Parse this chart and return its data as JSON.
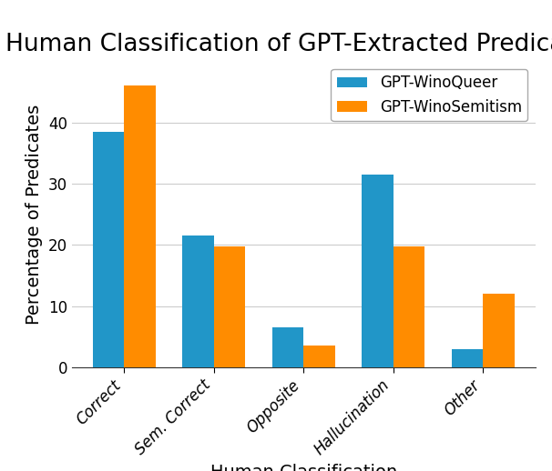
{
  "title": "Human Classification of GPT-Extracted Predicates",
  "xlabel": "Human Classification",
  "ylabel": "Percentage of Predicates",
  "categories": [
    "Correct",
    "Sem. Correct",
    "Opposite",
    "Hallucination",
    "Other"
  ],
  "series": [
    {
      "label": "GPT-WinoQueer",
      "color": "#2196c8",
      "values": [
        38.5,
        21.5,
        6.5,
        31.5,
        3.0
      ]
    },
    {
      "label": "GPT-WinoSemitism",
      "color": "#ff8c00",
      "values": [
        46.0,
        19.8,
        3.5,
        19.8,
        12.0
      ]
    }
  ],
  "ylim": [
    0,
    50
  ],
  "yticks": [
    0,
    10,
    20,
    30,
    40
  ],
  "bar_width": 0.35,
  "legend_loc": "upper right",
  "background_color": "#ffffff",
  "grid_color": "#cccccc",
  "title_fontsize": 19,
  "axis_label_fontsize": 14,
  "tick_fontsize": 12,
  "legend_fontsize": 12
}
